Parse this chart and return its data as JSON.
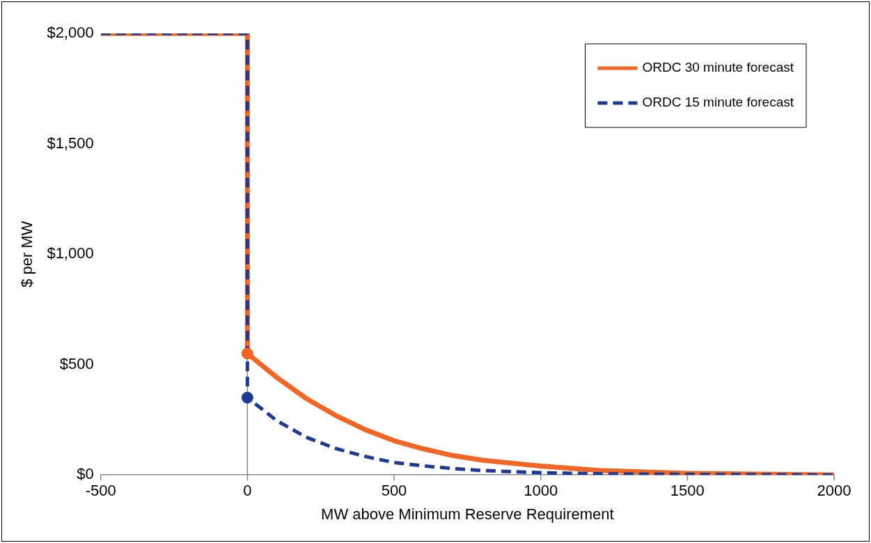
{
  "chart_data": {
    "type": "line",
    "xlabel": "MW above Minimum Reserve Requirement",
    "ylabel": "$ per MW",
    "xlim": [
      -500,
      2000
    ],
    "xticks": [
      -500,
      0,
      500,
      1000,
      1500,
      2000
    ],
    "ylim": [
      0,
      2000
    ],
    "yticks": [
      {
        "value": 0,
        "label": "$0"
      },
      {
        "value": 500,
        "label": "$500"
      },
      {
        "value": 1000,
        "label": "$1,000"
      },
      {
        "value": 1500,
        "label": "$1,500"
      },
      {
        "value": 2000,
        "label": "$2,000"
      }
    ],
    "grid": false,
    "ref_lines": [
      {
        "axis": "x",
        "value": 0,
        "color": "#888888"
      }
    ],
    "legend": "top right",
    "marker": "none",
    "series": [
      {
        "name": "ORDC 30 minute forecast",
        "color": "#f26522",
        "line_style": "solid",
        "x": [
          -500,
          0,
          0,
          100,
          200,
          300,
          400,
          500,
          600,
          700,
          800,
          1000,
          1200,
          1500,
          2000
        ],
        "values": [
          2000,
          2000,
          550,
          442,
          347,
          270,
          206,
          155,
          118,
          88,
          67,
          40,
          20,
          7,
          0
        ]
      },
      {
        "name": "ORDC 15 minute forecast",
        "color": "#1f3a93",
        "line_style": "dashed",
        "x": [
          -500,
          0,
          0,
          100,
          200,
          300,
          400,
          500,
          600,
          700,
          800,
          1000,
          1200,
          1500,
          2000
        ],
        "values": [
          2000,
          2000,
          350,
          246,
          171,
          120,
          84,
          56,
          41,
          29,
          20,
          10,
          5,
          2,
          0
        ]
      },
      {
        "type": "scatter",
        "color": "#f26522",
        "marker": "circle",
        "x": [
          0
        ],
        "values": [
          550
        ]
      },
      {
        "type": "scatter",
        "color": "#1f3a93",
        "marker": "circle",
        "x": [
          0
        ],
        "values": [
          350
        ]
      }
    ]
  }
}
